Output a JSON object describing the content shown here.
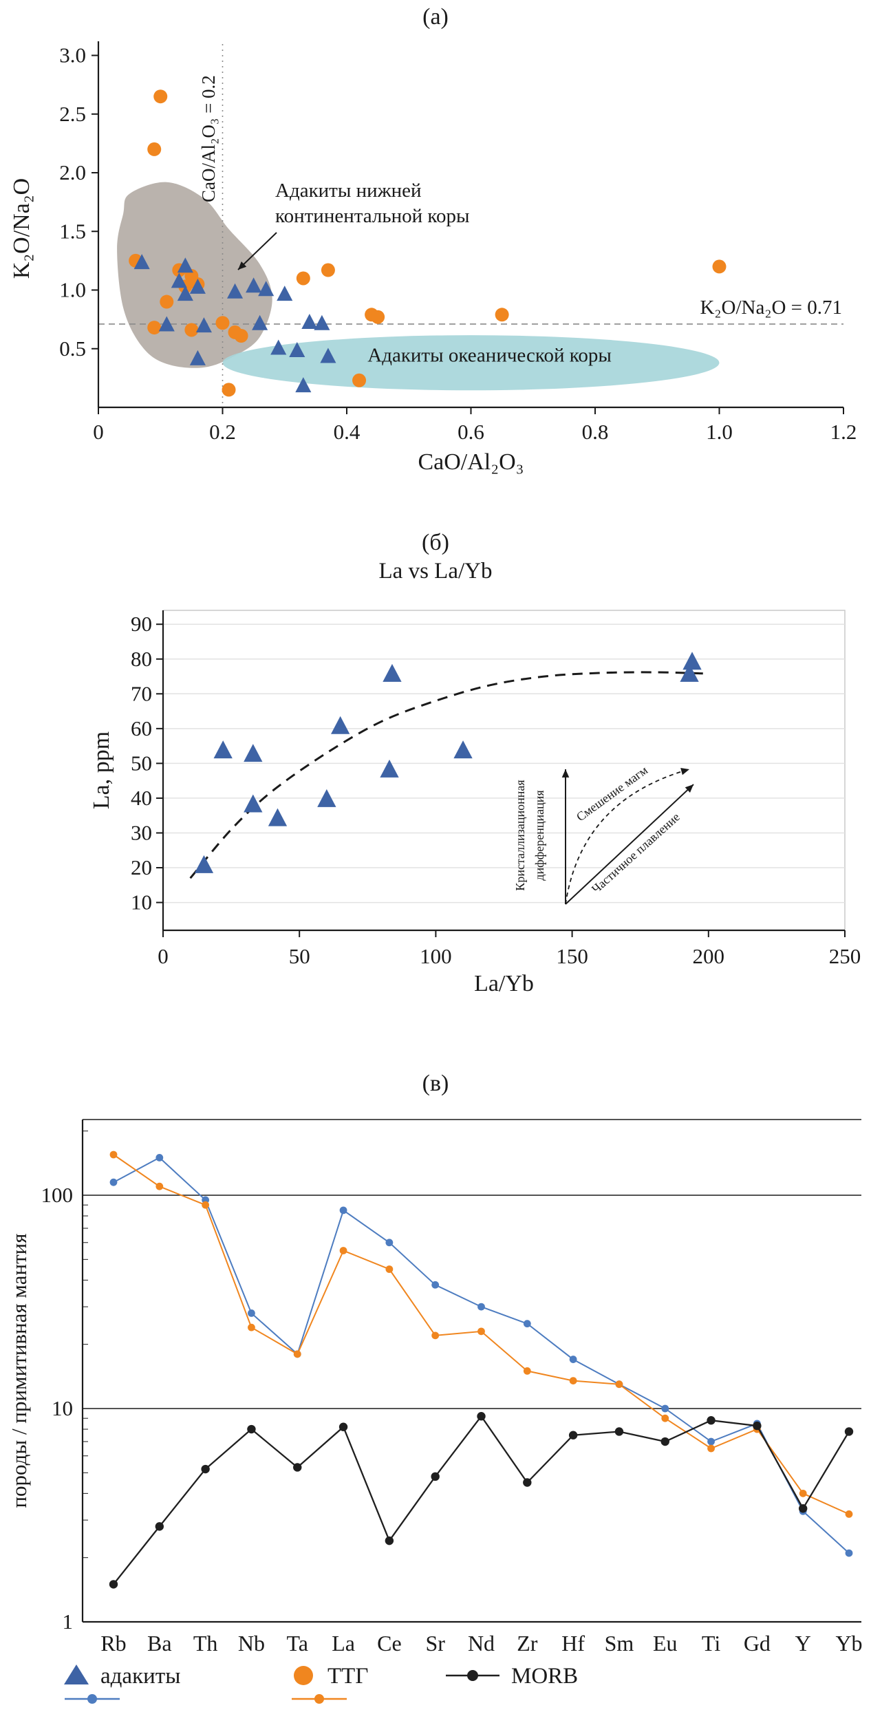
{
  "panels": {
    "a": {
      "label": "(а)"
    },
    "b": {
      "label": "(б)"
    },
    "c": {
      "label": "(в)"
    }
  },
  "chart_data": [
    {
      "id": "a",
      "type": "scatter",
      "title": "(а)",
      "xlabel": "CaO/Al₂O₃",
      "ylabel": "K₂O/Na₂O",
      "xlim": [
        0,
        1.2
      ],
      "ylim": [
        0,
        3.05
      ],
      "xticks": [
        0,
        0.2,
        0.4,
        0.6,
        0.8,
        1.0,
        1.2
      ],
      "xtick_labels": [
        "0",
        "0.2",
        "0.4",
        "0.6",
        "0.8",
        "1.0",
        "1.2"
      ],
      "yticks": [
        0.5,
        1.0,
        1.5,
        2.0,
        2.5,
        3.0
      ],
      "ytick_labels": [
        "0.5",
        "1.0",
        "1.5",
        "2.0",
        "2.5",
        "3.0"
      ],
      "grid": false,
      "reference_lines": [
        {
          "axis": "x",
          "value": 0.2,
          "style": "dotted",
          "label": "CaO/Al₂O₃ = 0.2"
        },
        {
          "axis": "y",
          "value": 0.71,
          "style": "dashed",
          "label": "K₂O/Na₂O = 0.71"
        }
      ],
      "regions": [
        {
          "name": "lower-continental-crust-adakites",
          "shape": "blob",
          "color": "#b1a8a2",
          "label_lines": [
            "Адакиты нижней",
            "континентальной коры"
          ],
          "outline": [
            [
              0.05,
              1.82
            ],
            [
              0.11,
              1.92
            ],
            [
              0.17,
              1.78
            ],
            [
              0.21,
              1.52
            ],
            [
              0.26,
              1.22
            ],
            [
              0.28,
              0.92
            ],
            [
              0.26,
              0.6
            ],
            [
              0.22,
              0.44
            ],
            [
              0.17,
              0.34
            ],
            [
              0.11,
              0.37
            ],
            [
              0.07,
              0.52
            ],
            [
              0.04,
              0.85
            ],
            [
              0.03,
              1.35
            ],
            [
              0.04,
              1.65
            ]
          ]
        },
        {
          "name": "oceanic-crust-adakites",
          "shape": "ellipse",
          "color": "#a7d6da",
          "label": "Адакиты океанической коры",
          "center": [
            0.6,
            0.38
          ],
          "rx": 0.4,
          "ry": 0.235
        }
      ],
      "series": [
        {
          "name": "ТТГ",
          "marker": "circle",
          "color": "#f0861f",
          "points": [
            [
              0.1,
              2.65
            ],
            [
              0.09,
              2.2
            ],
            [
              0.06,
              1.25
            ],
            [
              0.13,
              1.17
            ],
            [
              0.15,
              1.12
            ],
            [
              0.16,
              1.05
            ],
            [
              0.14,
              1.03
            ],
            [
              0.11,
              0.9
            ],
            [
              0.09,
              0.68
            ],
            [
              0.15,
              0.66
            ],
            [
              0.2,
              0.72
            ],
            [
              0.22,
              0.64
            ],
            [
              0.23,
              0.61
            ],
            [
              0.33,
              1.1
            ],
            [
              0.37,
              1.17
            ],
            [
              0.44,
              0.79
            ],
            [
              0.45,
              0.77
            ],
            [
              0.65,
              0.79
            ],
            [
              1.0,
              1.2
            ],
            [
              0.42,
              0.23
            ],
            [
              0.21,
              0.15
            ]
          ]
        },
        {
          "name": "адакиты",
          "marker": "triangle",
          "color": "#3e63a5",
          "points": [
            [
              0.07,
              1.23
            ],
            [
              0.14,
              1.2
            ],
            [
              0.13,
              1.07
            ],
            [
              0.16,
              1.02
            ],
            [
              0.14,
              0.96
            ],
            [
              0.22,
              0.98
            ],
            [
              0.25,
              1.03
            ],
            [
              0.27,
              1.0
            ],
            [
              0.3,
              0.96
            ],
            [
              0.11,
              0.7
            ],
            [
              0.17,
              0.69
            ],
            [
              0.26,
              0.71
            ],
            [
              0.34,
              0.72
            ],
            [
              0.36,
              0.71
            ],
            [
              0.29,
              0.5
            ],
            [
              0.32,
              0.48
            ],
            [
              0.37,
              0.43
            ],
            [
              0.16,
              0.41
            ],
            [
              0.33,
              0.18
            ]
          ]
        }
      ]
    },
    {
      "id": "b",
      "type": "scatter",
      "title": "La vs La/Yb",
      "xlabel": "La/Yb",
      "ylabel": "La, ppm",
      "xlim": [
        0,
        250
      ],
      "ylim": [
        2,
        94
      ],
      "xticks": [
        0,
        50,
        100,
        150,
        200,
        250
      ],
      "xtick_labels": [
        "0",
        "50",
        "100",
        "150",
        "200",
        "250"
      ],
      "yticks": [
        10,
        20,
        30,
        40,
        50,
        60,
        70,
        80,
        90
      ],
      "ytick_labels": [
        "10",
        "20",
        "30",
        "40",
        "50",
        "60",
        "70",
        "80",
        "90"
      ],
      "grid": true,
      "series": [
        {
          "name": "адакиты",
          "marker": "triangle",
          "color": "#3e63a5",
          "points": [
            [
              15,
              20.5
            ],
            [
              22,
              53.5
            ],
            [
              33,
              52.5
            ],
            [
              33,
              38
            ],
            [
              42,
              34
            ],
            [
              60,
              39.5
            ],
            [
              65,
              60.5
            ],
            [
              84,
              75.5
            ],
            [
              83,
              48
            ],
            [
              110,
              53.5
            ],
            [
              193,
              75.5
            ],
            [
              194,
              79
            ]
          ]
        }
      ],
      "trend_curve": {
        "style": "dashed",
        "points": [
          [
            10,
            17
          ],
          [
            25,
            31
          ],
          [
            40,
            42
          ],
          [
            60,
            53
          ],
          [
            80,
            62
          ],
          [
            100,
            68
          ],
          [
            120,
            72.5
          ],
          [
            140,
            75
          ],
          [
            160,
            76
          ],
          [
            180,
            76.2
          ],
          [
            200,
            75.8
          ]
        ]
      },
      "inset": {
        "labels": {
          "vertical_lines": [
            "Кристаллизационная",
            "дифференциация"
          ],
          "mixing": "Смешение магм",
          "melting": "Частичное плавление"
        }
      }
    },
    {
      "id": "c",
      "type": "line",
      "ylabel": "породы / примитивная мантия",
      "yscale": "log",
      "ylim": [
        1,
        230
      ],
      "yticks": [
        1,
        10,
        100
      ],
      "ytick_labels": [
        "1",
        "10",
        "100"
      ],
      "categories": [
        "Rb",
        "Ba",
        "Th",
        "Nb",
        "Ta",
        "La",
        "Ce",
        "Sr",
        "Nd",
        "Zr",
        "Hf",
        "Sm",
        "Eu",
        "Ti",
        "Gd",
        "Y",
        "Yb"
      ],
      "series": [
        {
          "name": "адакиты",
          "color": "#4d7cc0",
          "marker": "dot",
          "values": [
            115,
            150,
            95,
            28,
            18,
            85,
            60,
            38,
            30,
            25,
            17,
            13,
            10,
            7,
            8.5,
            3.3,
            2.1
          ]
        },
        {
          "name": "ТТГ",
          "color": "#f0861f",
          "marker": "dot",
          "values": [
            155,
            110,
            90,
            24,
            18,
            55,
            45,
            22,
            23,
            15,
            13.5,
            13,
            9,
            6.5,
            8,
            4,
            3.2
          ]
        },
        {
          "name": "MORB",
          "color": "#1f1f1f",
          "marker": "dot",
          "values": [
            1.5,
            2.8,
            5.2,
            8,
            5.3,
            8.2,
            2.4,
            4.8,
            9.2,
            4.5,
            7.5,
            7.8,
            7,
            8.8,
            8.3,
            3.4,
            7.8
          ]
        }
      ]
    }
  ],
  "legend": {
    "items": [
      {
        "label": "адакиты",
        "marker": "triangle",
        "color": "#3e63a5",
        "line_color": "#4d7cc0"
      },
      {
        "label": "ТТГ",
        "marker": "circle",
        "color": "#f0861f",
        "line_color": "#f0861f"
      },
      {
        "label": "MORB",
        "marker": "line-dot",
        "color": "#1f1f1f",
        "line_color": "#1f1f1f"
      }
    ]
  }
}
